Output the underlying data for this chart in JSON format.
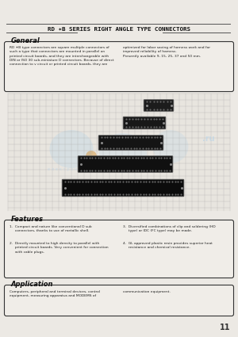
{
  "title": "RD ✶B SERIES RIGHT ANGLE TYPE CONNECTORS",
  "bg_color": "#ece9e4",
  "page_number": "11",
  "general_title": "General",
  "general_text_left": "RD ✶B type connectors are square multiple connectors of\nsuch a type that connectors are mounted in parallel on\nprinted circuit boards, and they are interchangeable with\nDIN or ISO 30 sub-miniature D connectors. Because of direct\nconnection to v circuit or printed circuit boards, they are",
  "general_text_right": "optimized for labor saving of harness work and for\nimproved reliability of harness.\nPresently available 9, 15, 25, 37 and 50 mm.",
  "features_title": "Features",
  "features_left_1": "1.  Compact and nature like conventional D sub\n     connectors, thanks to use of metallic shell.",
  "features_left_2": "2.  Directly mounted to high density to parallel with\n     printed circuit boards. Very convenient for connection\n     with cable plugs.",
  "features_right_1": "3.  Diversified combinations of clip and soldering (HD\n     type) or IDC (FC type) may be made.",
  "features_right_2": "4.  GL approved plastic resin provides superior heat\n     resistance and chemical resistance.",
  "application_title": "Application",
  "application_text_left": "Computers, peripheral and terminal devices, control\nequipment, measuring apparatus and MODEMS of",
  "application_text_right": "communication equipment.",
  "grid_color": "#aaaaaa",
  "connector_color": "#111111",
  "watermark_color": "#b8d4e8",
  "watermark_orange": "#d4943a"
}
